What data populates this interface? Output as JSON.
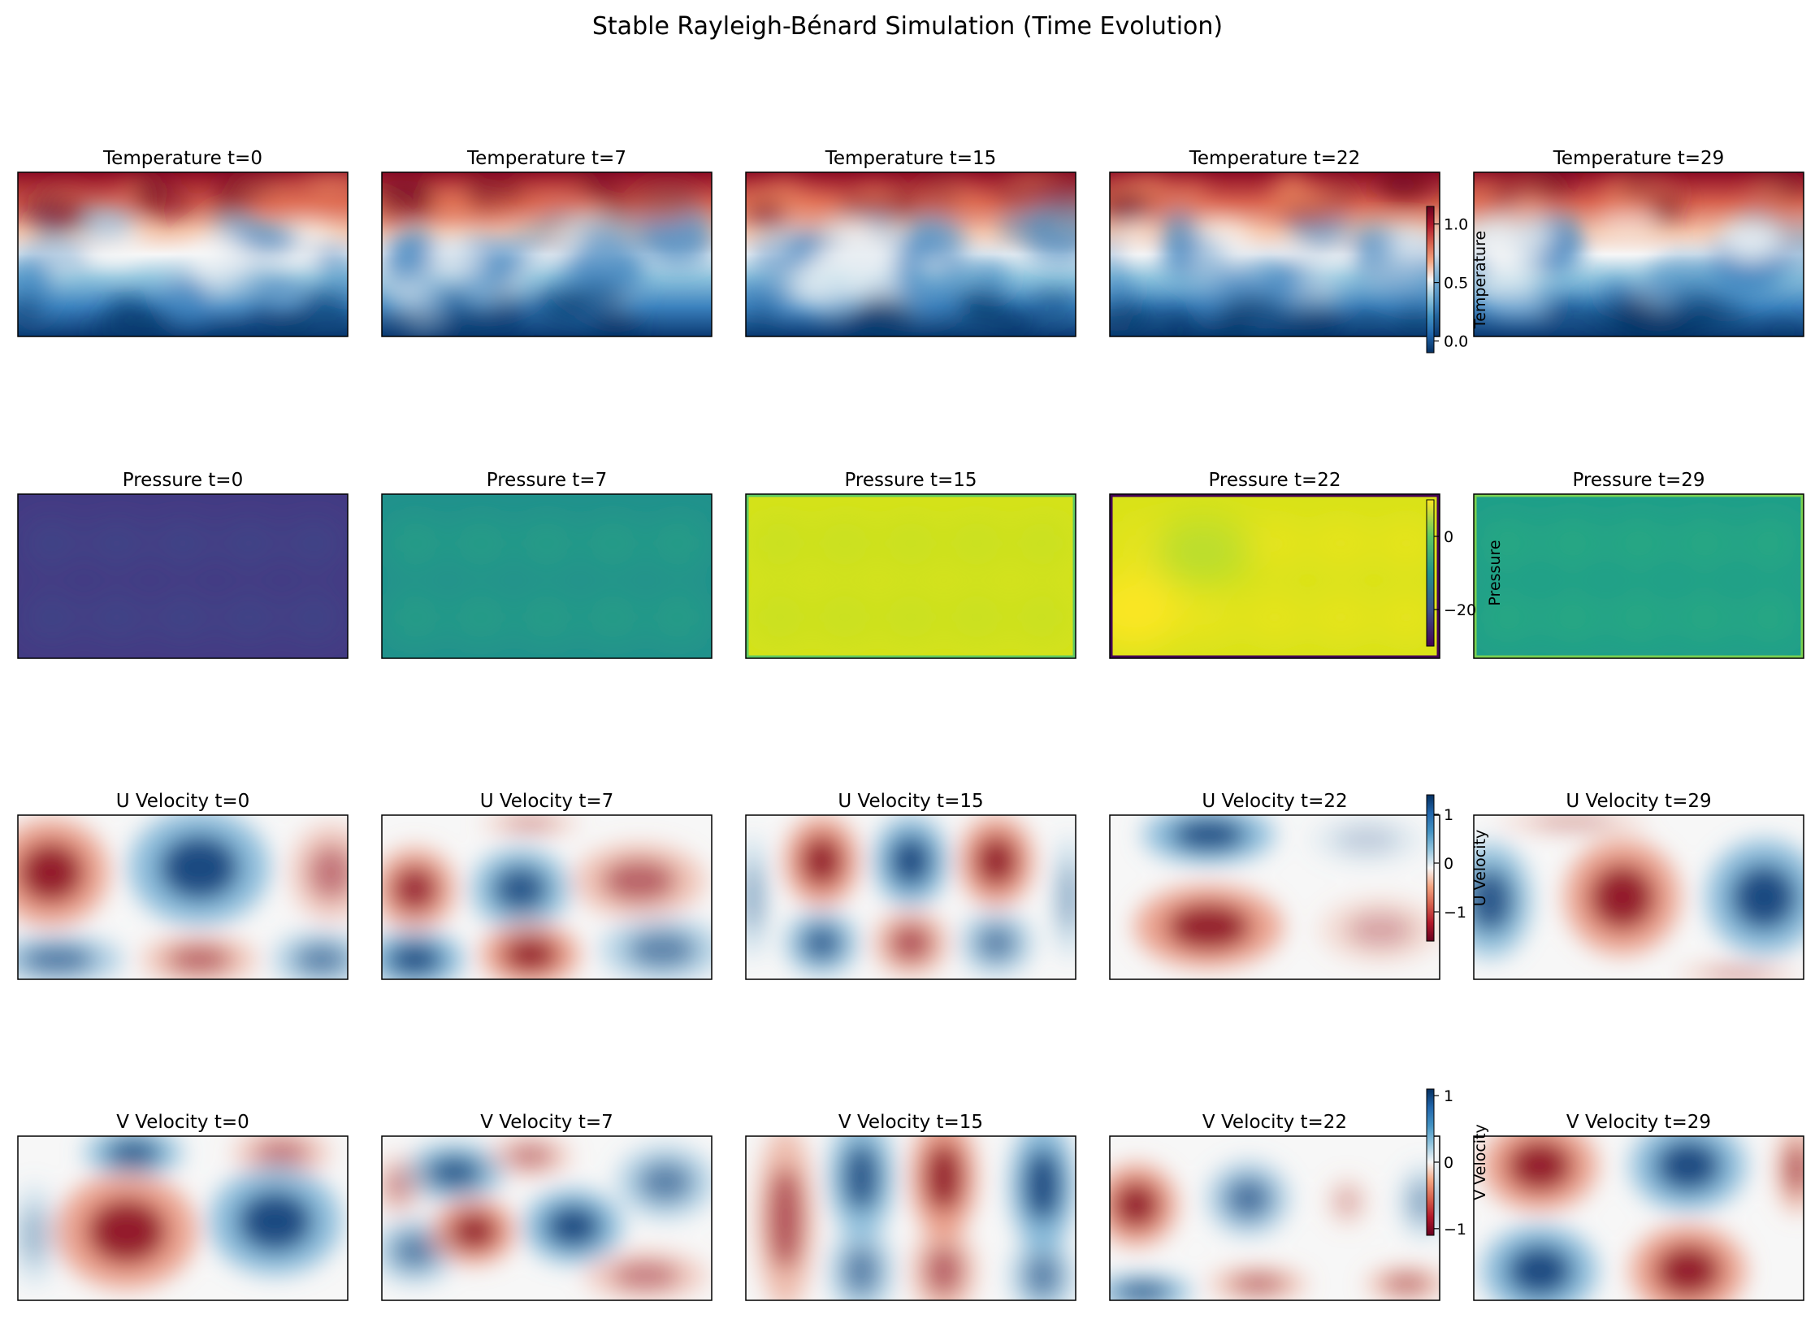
{
  "figure": {
    "title": "Stable Rayleigh-Bénard Simulation (Time Evolution)"
  },
  "chart_data": {
    "type": "heatmap",
    "title": "Stable Rayleigh-Bénard Simulation (Time Evolution)",
    "layout": "4 rows x 5 columns",
    "grid": false,
    "time_steps": [
      "t=0",
      "t=7",
      "t=15",
      "t=22",
      "t=29"
    ],
    "rows": [
      {
        "field": "Temperature",
        "colormap": "RdBu_r",
        "colorbar": {
          "label": "Temperature",
          "ticks": [
            "0.0",
            "0.5",
            "1.0"
          ],
          "range": [
            -0.1,
            1.15
          ],
          "colors": [
            "#053061",
            "#2166ac",
            "#4393c3",
            "#92c5de",
            "#f7f7f7",
            "#f4a582",
            "#d6604d",
            "#b2182b",
            "#67001f"
          ]
        },
        "panels": [
          {
            "title": "Temperature t=0"
          },
          {
            "title": "Temperature t=7"
          },
          {
            "title": "Temperature t=15"
          },
          {
            "title": "Temperature t=22"
          },
          {
            "title": "Temperature t=29"
          }
        ]
      },
      {
        "field": "Pressure",
        "colormap": "viridis",
        "colorbar": {
          "label": "Pressure",
          "ticks": [
            "0",
            "−20"
          ],
          "range": [
            -30,
            10
          ],
          "colors": [
            "#440154",
            "#3b528b",
            "#21918c",
            "#5ec962",
            "#fde725"
          ]
        },
        "panels": [
          {
            "title": "Pressure t=0"
          },
          {
            "title": "Pressure t=7"
          },
          {
            "title": "Pressure t=15"
          },
          {
            "title": "Pressure t=22"
          },
          {
            "title": "Pressure t=29"
          }
        ]
      },
      {
        "field": "U Velocity",
        "colormap": "RdBu",
        "colorbar": {
          "label": "U Velocity",
          "ticks": [
            "1",
            "0",
            "−1"
          ],
          "range": [
            -1.6,
            1.4
          ],
          "colors": [
            "#67001f",
            "#b2182b",
            "#d6604d",
            "#f4a582",
            "#f7f7f7",
            "#92c5de",
            "#4393c3",
            "#2166ac",
            "#053061"
          ]
        },
        "panels": [
          {
            "title": "U Velocity t=0"
          },
          {
            "title": "U Velocity t=7"
          },
          {
            "title": "U Velocity t=15"
          },
          {
            "title": "U Velocity t=22"
          },
          {
            "title": "U Velocity t=29"
          }
        ]
      },
      {
        "field": "V Velocity",
        "colormap": "RdBu",
        "colorbar": {
          "label": "V Velocity",
          "ticks": [
            "1",
            "0",
            "−1"
          ],
          "range": [
            -1.1,
            1.1
          ],
          "colors": [
            "#67001f",
            "#b2182b",
            "#d6604d",
            "#f4a582",
            "#f7f7f7",
            "#92c5de",
            "#4393c3",
            "#2166ac",
            "#053061"
          ]
        },
        "panels": [
          {
            "title": "V Velocity t=0"
          },
          {
            "title": "V Velocity t=7"
          },
          {
            "title": "V Velocity t=15"
          },
          {
            "title": "V Velocity t=22"
          },
          {
            "title": "V Velocity t=29"
          }
        ]
      }
    ]
  }
}
